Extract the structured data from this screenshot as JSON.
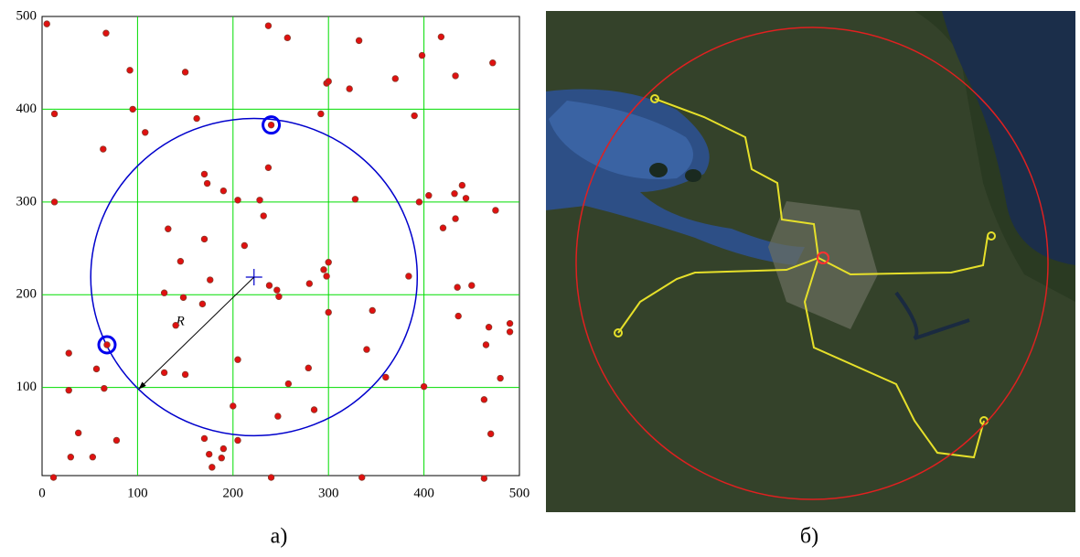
{
  "chart_data": {
    "type": "scatter",
    "xlim": [
      0,
      500
    ],
    "ylim": [
      5,
      500
    ],
    "xticks": [
      0,
      100,
      200,
      300,
      400,
      500
    ],
    "yticks": [
      100,
      200,
      300,
      400,
      500
    ],
    "grid": true,
    "grid_color": "#00dd00",
    "series": [
      {
        "color": "#e01010",
        "marker": "dot",
        "x": [
          5,
          67,
          92,
          150,
          237,
          257,
          298,
          300,
          332,
          370,
          398,
          418,
          433,
          472,
          13,
          95,
          108,
          162,
          64,
          292,
          322,
          390,
          240,
          13,
          170,
          173,
          190,
          205,
          228,
          232,
          237,
          132,
          170,
          145,
          212,
          176,
          128,
          148,
          168,
          238,
          246,
          248,
          280,
          295,
          300,
          298,
          300,
          328,
          384,
          395,
          405,
          432,
          440,
          444,
          420,
          433,
          475,
          435,
          450,
          436,
          468,
          490,
          490,
          346,
          140,
          68,
          57,
          28,
          28,
          65,
          38,
          53,
          30,
          78,
          12,
          128,
          150,
          205,
          200,
          170,
          175,
          178,
          190,
          188,
          205,
          240,
          247,
          258,
          279,
          285,
          335,
          340,
          360,
          400,
          463,
          465,
          470,
          480,
          463
        ],
        "y": [
          492,
          482,
          442,
          440,
          490,
          477,
          428,
          430,
          474,
          433,
          458,
          478,
          436,
          450,
          395,
          400,
          375,
          390,
          357,
          395,
          422,
          393,
          383,
          300,
          330,
          320,
          312,
          302,
          302,
          285,
          337,
          271,
          260,
          236,
          253,
          216,
          202,
          197,
          190,
          210,
          205,
          198,
          212,
          227,
          235,
          220,
          181,
          303,
          220,
          300,
          307,
          309,
          318,
          304,
          272,
          282,
          291,
          208,
          210,
          177,
          165,
          169,
          160,
          183,
          167,
          146,
          120,
          137,
          97,
          99,
          51,
          25,
          25,
          43,
          3,
          116,
          114,
          130,
          80,
          45,
          28,
          14,
          34,
          24,
          43,
          3,
          69,
          104,
          121,
          76,
          3,
          141,
          111,
          101,
          87,
          146,
          50,
          110,
          2
        ]
      },
      {
        "color": "#0000ee",
        "marker": "ring",
        "x": [
          68,
          240
        ],
        "y": [
          146,
          383
        ]
      }
    ],
    "circle": {
      "center": [
        222,
        219
      ],
      "radius": 171,
      "color": "#0000cc",
      "label": "R"
    }
  },
  "captions": [
    "а)",
    "б)"
  ]
}
